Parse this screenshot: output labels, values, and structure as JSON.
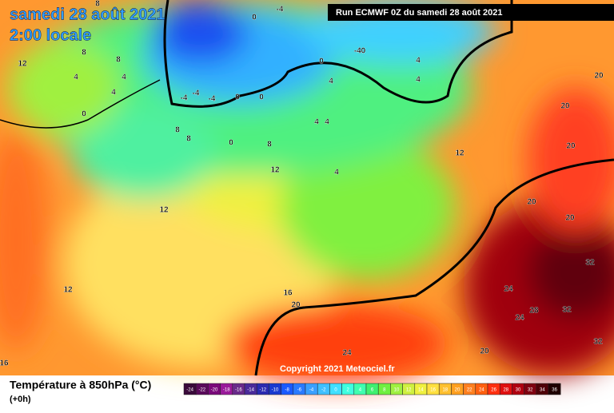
{
  "header": {
    "title": "samedi 28 août 2021",
    "time": "2:00 locale",
    "run": "Run ECMWF 0Z du samedi 28 août 2021",
    "copyright": "Copyright 2021 Meteociel.fr"
  },
  "map": {
    "contour_labels": [
      "8",
      "-4",
      "0",
      "12",
      "4",
      "4",
      "8",
      "8",
      "4",
      "0",
      "-4",
      "-4",
      "-4",
      "0",
      "0",
      "0",
      "-40",
      "4",
      "4",
      "4",
      "4",
      "4",
      "8",
      "8",
      "0",
      "8",
      "12",
      "4",
      "12",
      "12",
      "12",
      "16",
      "20",
      "24",
      "20",
      "24",
      "28",
      "24",
      "32",
      "32",
      "32",
      "20",
      "20",
      "20",
      "20",
      "20",
      "16"
    ]
  },
  "footer": {
    "variable": "Température à 850hPa (°C)",
    "lead": "(+0h)"
  },
  "legend": {
    "labels": [
      "-24",
      "-22",
      "-20",
      "-18",
      "-16",
      "-14",
      "-12",
      "-10",
      "-8",
      "-6",
      "-4",
      "-2",
      "0",
      "2",
      "4",
      "6",
      "8",
      "10",
      "12",
      "14",
      "16",
      "18",
      "20",
      "22",
      "24",
      "26",
      "28",
      "30",
      "32",
      "34",
      "36"
    ],
    "colors": [
      "#3a0a3a",
      "#5a0a5a",
      "#7a0a7a",
      "#9a1a9a",
      "#6a2a8a",
      "#4a2a9a",
      "#2a2ab0",
      "#1a3ad0",
      "#1a5aff",
      "#2a7aff",
      "#3aa0ff",
      "#40c0ff",
      "#40e0ff",
      "#40ffe0",
      "#40ffb0",
      "#40f070",
      "#70f040",
      "#a0f040",
      "#d0f040",
      "#f0f040",
      "#ffe040",
      "#ffc030",
      "#ffa020",
      "#ff8020",
      "#ff6010",
      "#ff3010",
      "#e01010",
      "#b00010",
      "#800010",
      "#500008",
      "#200000"
    ]
  }
}
